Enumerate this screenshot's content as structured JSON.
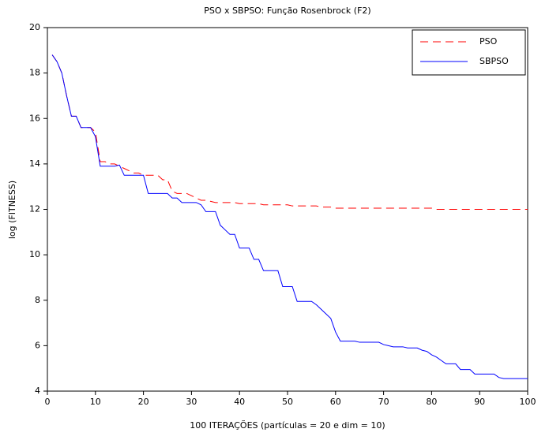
{
  "chart_data": {
    "type": "line",
    "title": "PSO x SBPSO: Função Rosenbrock (F2)",
    "xlabel": "100 ITERAÇÕES (partículas = 20 e dim = 10)",
    "ylabel": "log (FITNESS)",
    "x": [
      1,
      2,
      3,
      4,
      5,
      6,
      7,
      8,
      9,
      10,
      11,
      12,
      13,
      14,
      15,
      16,
      17,
      18,
      19,
      20,
      21,
      22,
      23,
      24,
      25,
      26,
      27,
      28,
      29,
      30,
      31,
      32,
      33,
      34,
      35,
      36,
      37,
      38,
      39,
      40,
      41,
      42,
      43,
      44,
      45,
      46,
      47,
      48,
      49,
      50,
      51,
      52,
      53,
      54,
      55,
      56,
      57,
      58,
      59,
      60,
      61,
      62,
      63,
      64,
      65,
      66,
      67,
      68,
      69,
      70,
      71,
      72,
      73,
      74,
      75,
      76,
      77,
      78,
      79,
      80,
      81,
      82,
      83,
      84,
      85,
      86,
      87,
      88,
      89,
      90,
      91,
      92,
      93,
      94,
      95,
      96,
      97,
      98,
      99,
      100
    ],
    "series": [
      {
        "name": "PSO",
        "color": "#ff0000",
        "linestyle": "dashed",
        "values": [
          18.8,
          18.5,
          18.0,
          17.0,
          16.1,
          16.1,
          15.6,
          15.6,
          15.6,
          15.4,
          14.1,
          14.1,
          14.0,
          14.0,
          13.9,
          13.8,
          13.7,
          13.6,
          13.6,
          13.5,
          13.5,
          13.5,
          13.5,
          13.3,
          13.3,
          12.8,
          12.7,
          12.7,
          12.7,
          12.6,
          12.5,
          12.4,
          12.4,
          12.35,
          12.3,
          12.3,
          12.3,
          12.3,
          12.3,
          12.25,
          12.25,
          12.25,
          12.25,
          12.25,
          12.2,
          12.2,
          12.2,
          12.2,
          12.2,
          12.2,
          12.15,
          12.15,
          12.15,
          12.15,
          12.15,
          12.15,
          12.1,
          12.1,
          12.1,
          12.05,
          12.05,
          12.05,
          12.05,
          12.05,
          12.05,
          12.05,
          12.05,
          12.05,
          12.05,
          12.05,
          12.05,
          12.05,
          12.05,
          12.05,
          12.05,
          12.05,
          12.05,
          12.05,
          12.05,
          12.05,
          12.0,
          12.0,
          12.0,
          12.0,
          12.0,
          12.0,
          12.0,
          12.0,
          12.0,
          12.0,
          12.0,
          12.0,
          12.0,
          12.0,
          12.0,
          12.0,
          12.0,
          12.0,
          12.0,
          12.0
        ]
      },
      {
        "name": "SBPSO",
        "color": "#0000ff",
        "linestyle": "solid",
        "values": [
          18.8,
          18.5,
          18.0,
          17.0,
          16.1,
          16.1,
          15.6,
          15.6,
          15.6,
          15.2,
          13.9,
          13.9,
          13.9,
          13.9,
          13.95,
          13.5,
          13.5,
          13.5,
          13.5,
          13.5,
          12.7,
          12.7,
          12.7,
          12.7,
          12.7,
          12.5,
          12.5,
          12.3,
          12.3,
          12.3,
          12.3,
          12.2,
          11.9,
          11.9,
          11.9,
          11.3,
          11.1,
          10.9,
          10.9,
          10.3,
          10.3,
          10.3,
          9.8,
          9.8,
          9.3,
          9.3,
          9.3,
          9.3,
          8.6,
          8.6,
          8.6,
          7.95,
          7.95,
          7.95,
          7.95,
          7.8,
          7.6,
          7.4,
          7.2,
          6.6,
          6.2,
          6.2,
          6.2,
          6.2,
          6.15,
          6.15,
          6.15,
          6.15,
          6.15,
          6.05,
          6.0,
          5.95,
          5.95,
          5.95,
          5.9,
          5.9,
          5.9,
          5.8,
          5.75,
          5.6,
          5.5,
          5.35,
          5.2,
          5.2,
          5.2,
          4.95,
          4.95,
          4.95,
          4.75,
          4.75,
          4.75,
          4.75,
          4.75,
          4.6,
          4.55,
          4.55,
          4.55,
          4.55,
          4.55,
          4.55
        ]
      }
    ],
    "xlim": [
      0,
      100
    ],
    "xticks": [
      0,
      10,
      20,
      30,
      40,
      50,
      60,
      70,
      80,
      90,
      100
    ],
    "ylim": [
      4,
      20
    ],
    "yticks": [
      4,
      6,
      8,
      10,
      12,
      14,
      16,
      18,
      20
    ],
    "legend": "upper right"
  }
}
